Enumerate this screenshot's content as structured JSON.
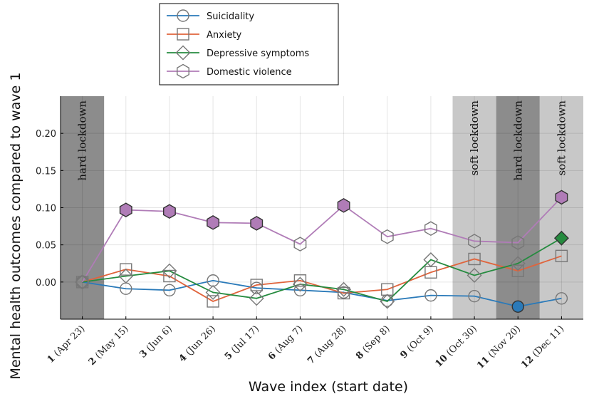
{
  "chart_data": {
    "type": "line",
    "xlabel": "Wave index (start date)",
    "ylabel": "Mental health outcomes compared to wave 1",
    "ylim": [
      -0.05,
      0.25
    ],
    "xlim": [
      0.5,
      12.5
    ],
    "yticks": [
      0.0,
      0.05,
      0.1,
      0.15,
      0.2
    ],
    "ytick_labels": [
      "0.00",
      "0.05",
      "0.10",
      "0.15",
      "0.20"
    ],
    "grid": true,
    "legend_position": "top-left, outside above plot",
    "categories": [
      {
        "num": "1",
        "date": "(Apr 23)"
      },
      {
        "num": "2",
        "date": "(May 15)"
      },
      {
        "num": "3",
        "date": "(Jun 6)"
      },
      {
        "num": "4",
        "date": "(Jun 26)"
      },
      {
        "num": "5",
        "date": "(Jul 17)"
      },
      {
        "num": "6",
        "date": "(Aug 7)"
      },
      {
        "num": "7",
        "date": "(Aug 28)"
      },
      {
        "num": "8",
        "date": "(Sep 8)"
      },
      {
        "num": "9",
        "date": "(Oct 9)"
      },
      {
        "num": "10",
        "date": "(Oct 30)"
      },
      {
        "num": "11",
        "date": "(Nov 20)"
      },
      {
        "num": "12",
        "date": "(Dec 11)"
      }
    ],
    "bands": [
      {
        "label": "hard lockdown",
        "from": 0.5,
        "to": 1.5,
        "color": "#8c8c8c"
      },
      {
        "label": "soft lockdown",
        "from": 9.5,
        "to": 10.5,
        "color": "#c8c8c8"
      },
      {
        "label": "hard lockdown",
        "from": 10.5,
        "to": 11.5,
        "color": "#8c8c8c"
      },
      {
        "label": "soft lockdown",
        "from": 11.5,
        "to": 12.5,
        "color": "#c8c8c8"
      }
    ],
    "series": [
      {
        "name": "Suicidality",
        "color": "#2a7ab9",
        "marker": "circle",
        "values": [
          0.0,
          -0.009,
          -0.011,
          0.002,
          -0.008,
          -0.011,
          -0.014,
          -0.025,
          -0.018,
          -0.019,
          -0.033,
          -0.022
        ],
        "significant": [
          false,
          false,
          false,
          false,
          false,
          false,
          false,
          false,
          false,
          false,
          true,
          false
        ]
      },
      {
        "name": "Anxiety",
        "color": "#e0643c",
        "marker": "square",
        "values": [
          0.0,
          0.017,
          0.008,
          -0.026,
          -0.004,
          0.002,
          -0.015,
          -0.01,
          0.013,
          0.031,
          0.015,
          0.035
        ],
        "significant": [
          false,
          false,
          false,
          false,
          false,
          false,
          false,
          false,
          false,
          false,
          false,
          false
        ]
      },
      {
        "name": "Depressive symptoms",
        "color": "#258b3f",
        "marker": "diamond",
        "values": [
          0.0,
          0.008,
          0.015,
          -0.014,
          -0.022,
          -0.003,
          -0.01,
          -0.026,
          0.03,
          0.009,
          0.025,
          0.059
        ],
        "significant": [
          false,
          false,
          false,
          false,
          false,
          false,
          false,
          false,
          false,
          false,
          false,
          true
        ]
      },
      {
        "name": "Domestic violence",
        "color": "#b07cb7",
        "marker": "hexagon",
        "values": [
          0.0,
          0.097,
          0.095,
          0.08,
          0.079,
          0.051,
          0.103,
          0.061,
          0.072,
          0.055,
          0.053,
          0.114
        ],
        "significant": [
          false,
          true,
          true,
          true,
          true,
          false,
          true,
          false,
          false,
          false,
          false,
          true
        ]
      }
    ]
  }
}
